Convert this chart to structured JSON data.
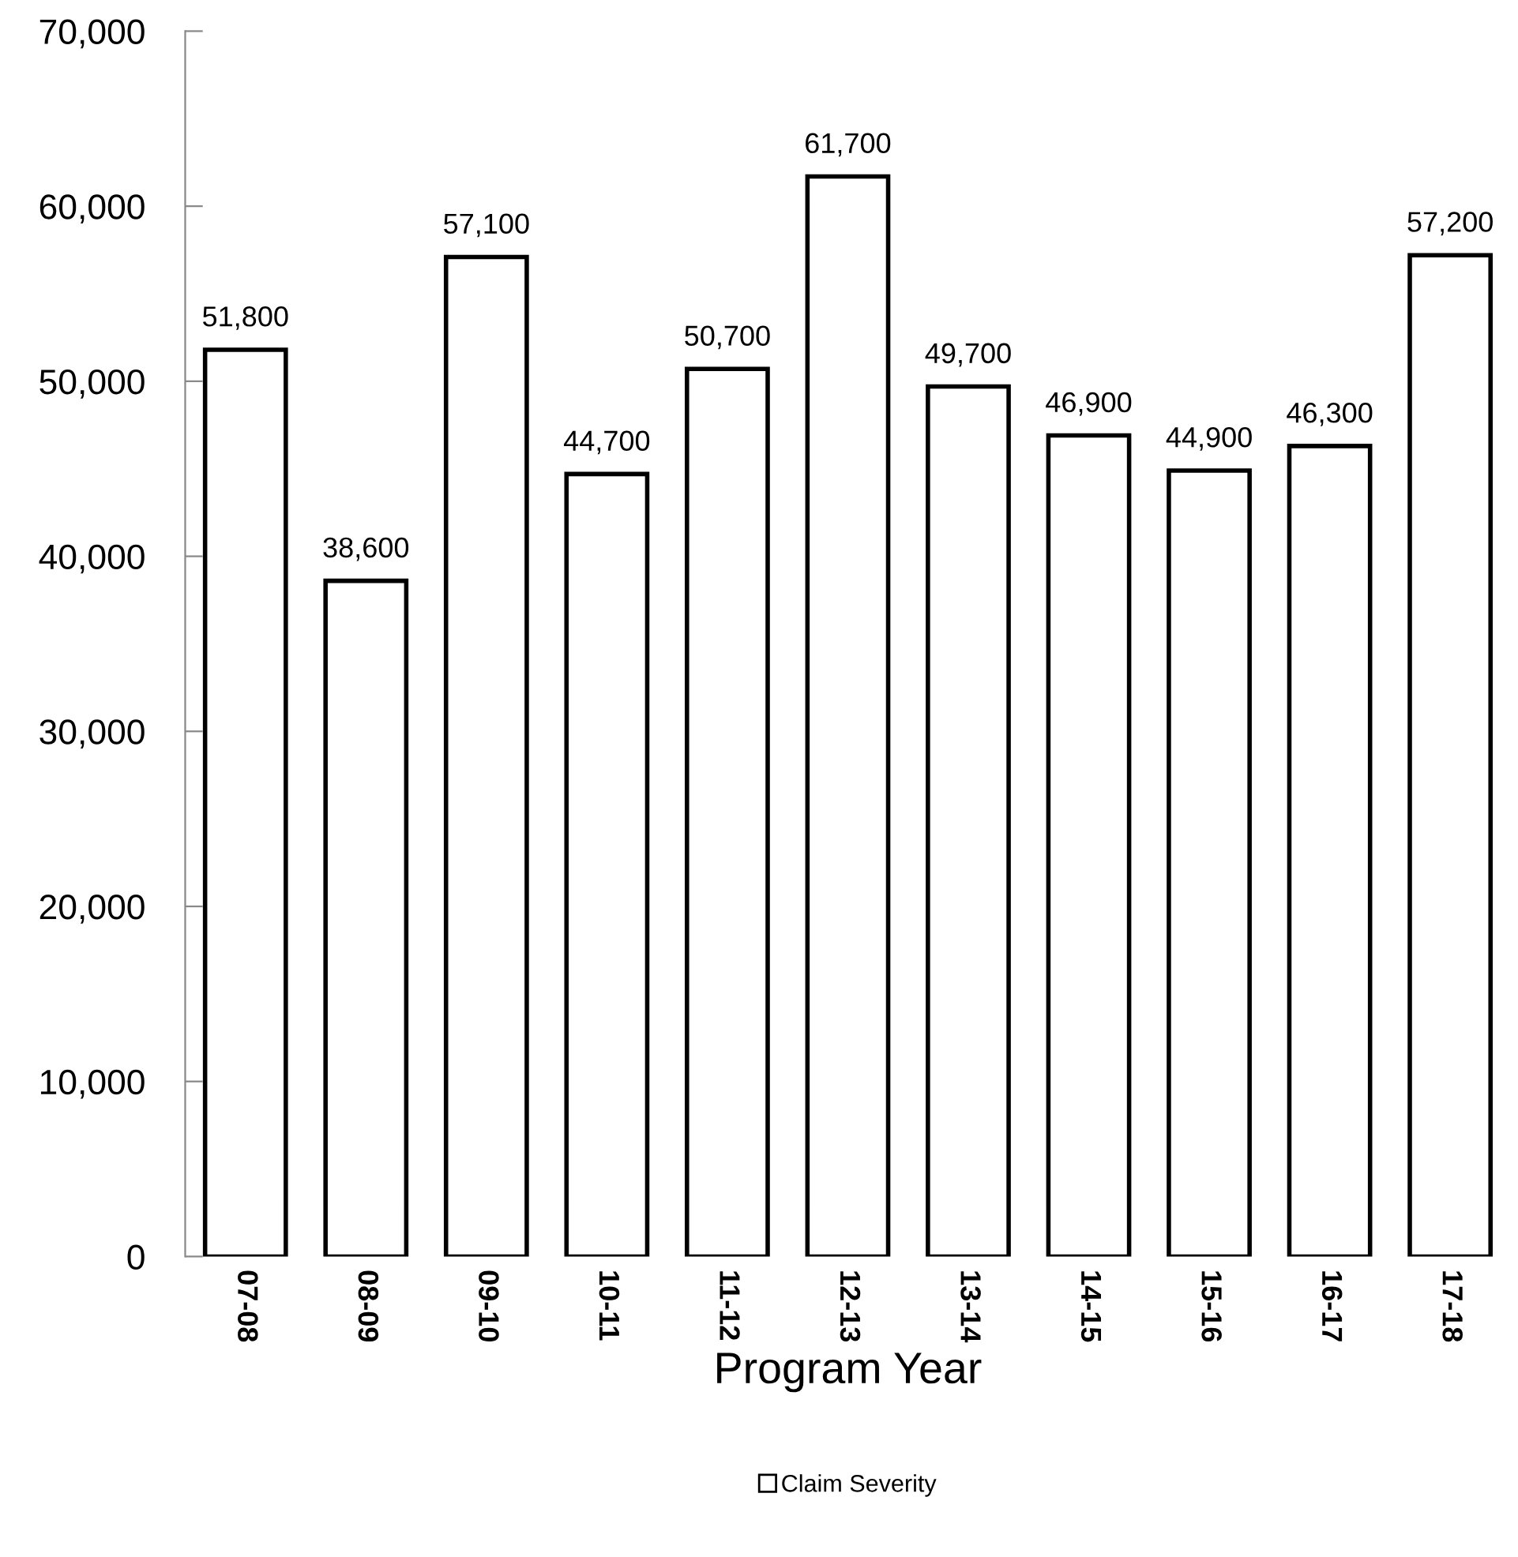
{
  "chart_data": {
    "type": "bar",
    "xlabel": "Program Year",
    "categories": [
      "07-08",
      "08-09",
      "09-10",
      "10-11",
      "11-12",
      "12-13",
      "13-14",
      "14-15",
      "15-16",
      "16-17",
      "17-18"
    ],
    "series": [
      {
        "name": "Claim Severity",
        "color": "#ffffff",
        "values": [
          51800,
          38600,
          57100,
          44700,
          50700,
          61700,
          49700,
          46900,
          44900,
          46300,
          57200
        ],
        "value_labels": [
          "51,800",
          "38,600",
          "57,100",
          "44,700",
          "50,700",
          "61,700",
          "49,700",
          "46,900",
          "44,900",
          "46,300",
          "57,200"
        ]
      }
    ],
    "ylim": [
      0,
      70000
    ],
    "yticks": [
      {
        "value": 0,
        "label": "0"
      },
      {
        "value": 10000,
        "label": "10,000"
      },
      {
        "value": 20000,
        "label": "20,000"
      },
      {
        "value": 30000,
        "label": "30,000"
      },
      {
        "value": 40000,
        "label": "40,000"
      },
      {
        "value": 50000,
        "label": "50,000"
      },
      {
        "value": 60000,
        "label": "60,000"
      },
      {
        "value": 70000,
        "label": "70,000"
      }
    ],
    "grid": false,
    "legend": "bottom"
  }
}
